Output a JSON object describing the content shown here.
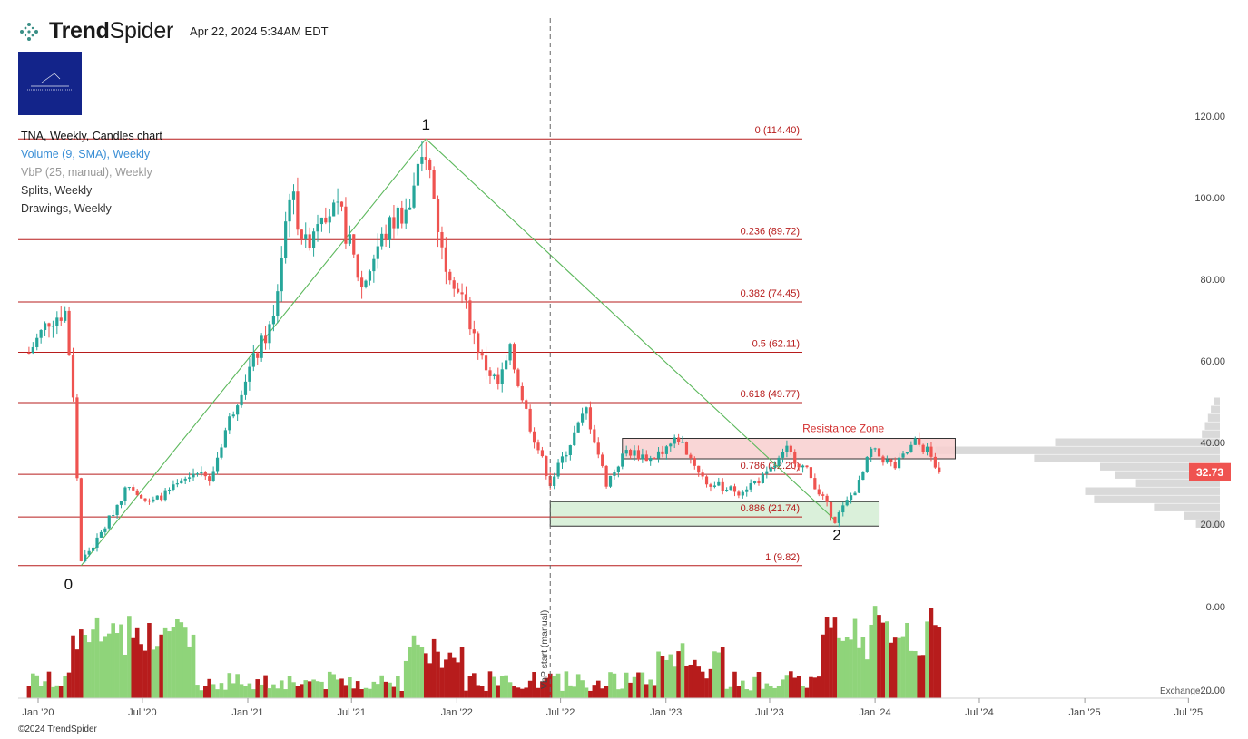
{
  "brand": {
    "name_bold": "Trend",
    "name_light": "Spider",
    "logo_icon": "trendspider-dots-icon",
    "copyright": "©2024 TrendSpider"
  },
  "header": {
    "timestamp": "Apr 22, 2024 5:34AM EDT"
  },
  "legend": {
    "main": "TNA, Weekly, Candles chart",
    "volume": "Volume (9, SMA), Weekly",
    "vbp": "VbP (25, manual), Weekly",
    "splits": "Splits, Weekly",
    "drawings": "Drawings, Weekly"
  },
  "exchange_note": "Exchange: ...",
  "colors": {
    "up": "#26a69a",
    "down": "#ef5350",
    "vol_up": "#8fd47a",
    "vol_down": "#b71c1c",
    "fib": "#b71c1c",
    "trend": "#5cb85c",
    "resistance_fill": "#f8cfcf",
    "support_fill": "#d4edd4",
    "price_badge": "#ef5350"
  },
  "chart_data": {
    "type": "candlestick",
    "ticker": "TNA",
    "interval": "Weekly",
    "y_axis": {
      "ticks": [
        20,
        40,
        60,
        80,
        100,
        120
      ],
      "tick_labels": [
        "20.00",
        "40.00",
        "60.00",
        "80.00",
        "100.00",
        "120.00"
      ]
    },
    "volume_axis_labels": [
      "0.00",
      "-20.00"
    ],
    "x_axis": {
      "tick_labels": [
        "Jan '20",
        "Jul '20",
        "Jan '21",
        "Jul '21",
        "Jan '22",
        "Jul '22",
        "Jan '23",
        "Jul '23",
        "Jan '24",
        "Jul '24",
        "Jan '25",
        "Jul '25"
      ]
    },
    "last_price": "32.73",
    "last_price_value": 32.73,
    "fibonacci": [
      {
        "label": "0 (114.40)",
        "value": 114.4
      },
      {
        "label": "0.236 (89.72)",
        "value": 89.72
      },
      {
        "label": "0.382 (74.45)",
        "value": 74.45
      },
      {
        "label": "0.5 (62.11)",
        "value": 62.11
      },
      {
        "label": "0.618 (49.77)",
        "value": 49.77
      },
      {
        "label": "0.786 (32.20)",
        "value": 32.2
      },
      {
        "label": "0.886 (21.74)",
        "value": 21.74
      },
      {
        "label": "1 (9.82)",
        "value": 9.82
      }
    ],
    "pivots": [
      {
        "label": "0",
        "date": "2020-03-16",
        "price": 9.82
      },
      {
        "label": "1",
        "date": "2021-11-08",
        "price": 114.4
      },
      {
        "label": "2",
        "date": "2023-10-23",
        "price": 21.0
      }
    ],
    "zones": [
      {
        "label": "Resistance Zone",
        "from": "2022-10-17",
        "to": "2024-05-20",
        "low": 36.0,
        "high": 41.0
      },
      {
        "label": "",
        "from": "2022-06-13",
        "to": "2024-01-08",
        "low": 19.5,
        "high": 25.5
      }
    ],
    "vertical_marker": {
      "label": "VbP start (manual)",
      "date": "2022-06-13"
    },
    "price_anchors": [
      [
        "2019-12-16",
        62
      ],
      [
        "2020-01-20",
        70
      ],
      [
        "2020-02-17",
        72
      ],
      [
        "2020-03-02",
        52
      ],
      [
        "2020-03-16",
        11
      ],
      [
        "2020-04-13",
        16
      ],
      [
        "2020-06-08",
        30
      ],
      [
        "2020-07-13",
        25
      ],
      [
        "2020-09-07",
        30
      ],
      [
        "2020-10-12",
        34
      ],
      [
        "2020-10-26",
        30
      ],
      [
        "2020-11-23",
        43
      ],
      [
        "2020-12-28",
        56
      ],
      [
        "2021-02-15",
        70
      ],
      [
        "2021-03-15",
        102
      ],
      [
        "2021-04-12",
        88
      ],
      [
        "2021-05-10",
        98
      ],
      [
        "2021-06-14",
        95
      ],
      [
        "2021-07-19",
        78
      ],
      [
        "2021-08-16",
        88
      ],
      [
        "2021-09-20",
        96
      ],
      [
        "2021-10-11",
        98
      ],
      [
        "2021-11-08",
        112
      ],
      [
        "2021-12-06",
        87
      ],
      [
        "2022-01-10",
        76
      ],
      [
        "2022-02-14",
        60
      ],
      [
        "2022-03-14",
        54
      ],
      [
        "2022-04-04",
        62
      ],
      [
        "2022-05-09",
        44
      ],
      [
        "2022-06-13",
        30
      ],
      [
        "2022-07-18",
        40
      ],
      [
        "2022-08-15",
        48
      ],
      [
        "2022-09-19",
        30
      ],
      [
        "2022-10-24",
        38
      ],
      [
        "2022-12-05",
        36
      ],
      [
        "2023-01-23",
        41
      ],
      [
        "2023-03-13",
        30
      ],
      [
        "2023-05-08",
        28
      ],
      [
        "2023-06-26",
        32
      ],
      [
        "2023-07-31",
        38
      ],
      [
        "2023-09-04",
        33
      ],
      [
        "2023-10-23",
        21
      ],
      [
        "2023-12-04",
        30
      ],
      [
        "2023-12-25",
        38
      ],
      [
        "2024-02-05",
        34
      ],
      [
        "2024-03-11",
        40
      ],
      [
        "2024-04-01",
        38
      ],
      [
        "2024-04-22",
        32.73
      ]
    ],
    "vbp_profile": [
      {
        "price": 20.0,
        "volume": 0.08
      },
      {
        "price": 22.0,
        "volume": 0.12
      },
      {
        "price": 24.0,
        "volume": 0.22
      },
      {
        "price": 26.0,
        "volume": 0.42
      },
      {
        "price": 28.0,
        "volume": 0.45
      },
      {
        "price": 30.0,
        "volume": 0.28
      },
      {
        "price": 32.0,
        "volume": 0.35
      },
      {
        "price": 34.0,
        "volume": 0.4
      },
      {
        "price": 36.0,
        "volume": 0.62
      },
      {
        "price": 38.0,
        "volume": 0.95
      },
      {
        "price": 40.0,
        "volume": 0.55
      },
      {
        "price": 42.0,
        "volume": 0.06
      },
      {
        "price": 44.0,
        "volume": 0.05
      },
      {
        "price": 46.0,
        "volume": 0.04
      },
      {
        "price": 48.0,
        "volume": 0.03
      },
      {
        "price": 50.0,
        "volume": 0.02
      }
    ]
  }
}
